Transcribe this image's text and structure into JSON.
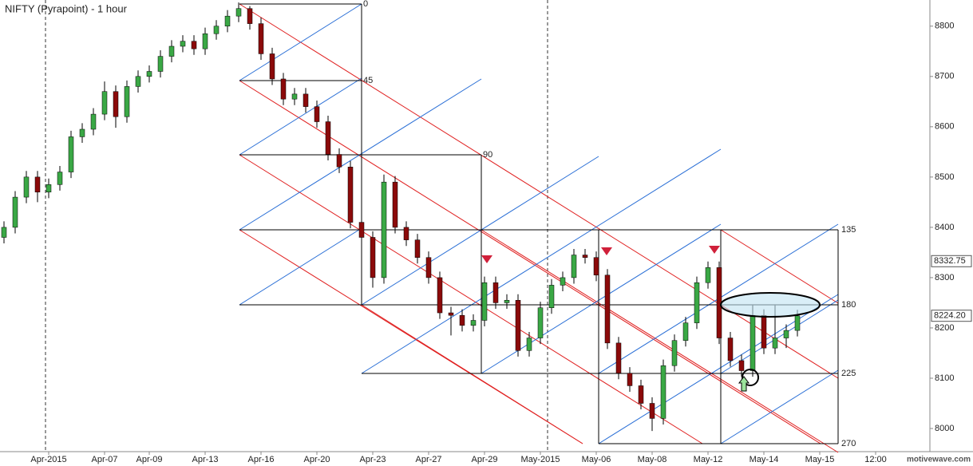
{
  "chart_data": {
    "type": "candlestick",
    "title": "NIFTY (Pyrapoint) - 1 hour",
    "categories": [
      null,
      null,
      null,
      null,
      "Apr-2015",
      null,
      null,
      null,
      null,
      "Apr-07",
      null,
      null,
      null,
      "Apr-09",
      null,
      null,
      null,
      null,
      "Apr-13",
      null,
      null,
      null,
      null,
      "Apr-16",
      null,
      null,
      null,
      null,
      "Apr-20",
      null,
      null,
      null,
      null,
      "Apr-23",
      null,
      null,
      null,
      null,
      "Apr-27",
      null,
      null,
      null,
      null,
      "Apr-29",
      null,
      null,
      null,
      null,
      "May-2015",
      null,
      null,
      null,
      null,
      "May-06",
      null,
      null,
      null,
      null,
      "May-08",
      null,
      null,
      null,
      null,
      "May-12",
      null,
      null,
      null,
      null,
      "May-14",
      null,
      null,
      null,
      null,
      "May-15",
      null,
      null,
      null,
      null,
      "12:00",
      null
    ],
    "open": [
      8380,
      8400,
      8460,
      8500,
      8470,
      8485,
      8510,
      8580,
      8595,
      8625,
      8670,
      8620,
      8680,
      8700,
      8710,
      8740,
      8760,
      8770,
      8755,
      8785,
      8800,
      8820,
      8835,
      8805,
      8745,
      8695,
      8655,
      8665,
      8640,
      8610,
      8545,
      8520,
      8410,
      8380,
      8300,
      8490,
      8400,
      8375,
      8340,
      8300,
      8230,
      8225,
      8205,
      8215,
      8290,
      8250,
      8255,
      8155,
      8180,
      8240,
      8285,
      8300,
      8345,
      8340,
      8305,
      8170,
      8110,
      8085,
      8050,
      8020,
      8125,
      8175,
      8210,
      8290,
      8320,
      8180,
      8135,
      8115,
      8225,
      8160,
      8180,
      8195,
      null,
      null,
      null,
      null,
      null,
      null,
      null,
      null
    ],
    "high": [
      8412,
      8472,
      8512,
      8512,
      8497,
      8522,
      8592,
      8607,
      8637,
      8690,
      8682,
      8692,
      8712,
      8722,
      8752,
      8772,
      8782,
      8782,
      8797,
      8812,
      8832,
      8847,
      8840,
      8817,
      8757,
      8707,
      8677,
      8677,
      8652,
      8622,
      8557,
      8532,
      8422,
      8392,
      8505,
      8502,
      8412,
      8387,
      8352,
      8312,
      8242,
      8237,
      8227,
      8302,
      8302,
      8267,
      8267,
      8192,
      8252,
      8297,
      8312,
      8357,
      8357,
      8352,
      8317,
      8182,
      8122,
      8097,
      8062,
      8137,
      8187,
      8222,
      8302,
      8332,
      8332,
      8192,
      8147,
      8245,
      8237,
      8245,
      8207,
      8236,
      null,
      null,
      null,
      null,
      null,
      null,
      null,
      null
    ],
    "low": [
      8368,
      8388,
      8448,
      8450,
      8458,
      8473,
      8498,
      8568,
      8583,
      8613,
      8598,
      8608,
      8668,
      8688,
      8698,
      8728,
      8748,
      8743,
      8743,
      8773,
      8788,
      8808,
      8793,
      8733,
      8683,
      8643,
      8643,
      8628,
      8598,
      8533,
      8508,
      8398,
      8368,
      8280,
      8288,
      8388,
      8363,
      8328,
      8288,
      8218,
      8185,
      8193,
      8193,
      8203,
      8238,
      8238,
      8143,
      8143,
      8168,
      8228,
      8273,
      8288,
      8328,
      8293,
      8158,
      8098,
      8073,
      8038,
      7995,
      8008,
      8113,
      8163,
      8198,
      8278,
      8168,
      8123,
      8103,
      8103,
      8148,
      8148,
      8160,
      8183,
      null,
      null,
      null,
      null,
      null,
      null,
      null,
      null
    ],
    "close": [
      8400,
      8460,
      8500,
      8470,
      8485,
      8510,
      8580,
      8595,
      8625,
      8670,
      8620,
      8680,
      8700,
      8710,
      8740,
      8760,
      8770,
      8755,
      8785,
      8800,
      8820,
      8835,
      8805,
      8745,
      8695,
      8655,
      8665,
      8640,
      8610,
      8545,
      8520,
      8410,
      8380,
      8300,
      8490,
      8400,
      8375,
      8340,
      8300,
      8230,
      8225,
      8205,
      8215,
      8290,
      8250,
      8255,
      8155,
      8180,
      8240,
      8285,
      8300,
      8345,
      8340,
      8305,
      8170,
      8110,
      8085,
      8050,
      8020,
      8125,
      8175,
      8210,
      8290,
      8320,
      8180,
      8135,
      8115,
      8225,
      8160,
      8180,
      8195,
      8224,
      null,
      null,
      null,
      null,
      null,
      null,
      null,
      null
    ],
    "up_color": "#3aa845",
    "down_color": "#8b0a0a",
    "ylim": [
      7954,
      8852
    ],
    "yticks": [
      8000,
      8100,
      8200,
      8300,
      8400,
      8500,
      8600,
      8700,
      8800
    ],
    "price_tags": [
      8332.75,
      {
        "value": 8224.2,
        "label": "8224.20"
      }
    ],
    "pyrapoint_labels": [
      "0",
      "45",
      "90",
      "135",
      "180",
      "225",
      "270"
    ],
    "watermark": "motivewave.com"
  }
}
